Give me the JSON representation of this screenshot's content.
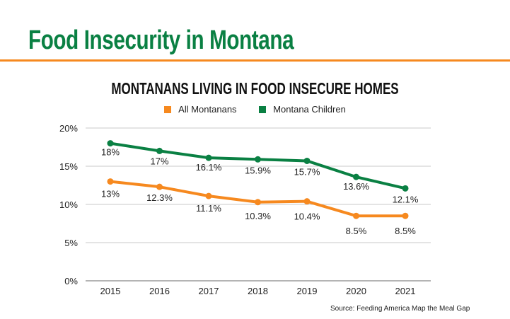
{
  "header": {
    "title": "Food Insecurity in Montana"
  },
  "source": "Source: Feeding America Map the Meal Gap",
  "chart_data": {
    "type": "line",
    "title": "MONTANANS LIVING IN FOOD INSECURE HOMES",
    "xlabel": "",
    "ylabel": "",
    "categories": [
      "2015",
      "2016",
      "2017",
      "2018",
      "2019",
      "2020",
      "2021"
    ],
    "ylim": [
      0,
      20
    ],
    "yticks": [
      0,
      5,
      10,
      15,
      20
    ],
    "ytick_labels": [
      "0%",
      "5%",
      "10%",
      "15%",
      "20%"
    ],
    "grid": true,
    "legend_position": "top-center",
    "series": [
      {
        "name": "All Montanans",
        "color": "#f6891f",
        "values": [
          13,
          12.3,
          11.1,
          10.3,
          10.4,
          8.5,
          8.5
        ],
        "labels": [
          "13%",
          "12.3%",
          "11.1%",
          "10.3%",
          "10.4%",
          "8.5%",
          "8.5%"
        ]
      },
      {
        "name": "Montana Children",
        "color": "#0a8043",
        "values": [
          18,
          17,
          16.1,
          15.9,
          15.7,
          13.6,
          12.1
        ],
        "labels": [
          "18%",
          "17%",
          "16.1%",
          "15.9%",
          "15.7%",
          "13.6%",
          "12.1%"
        ]
      }
    ]
  }
}
